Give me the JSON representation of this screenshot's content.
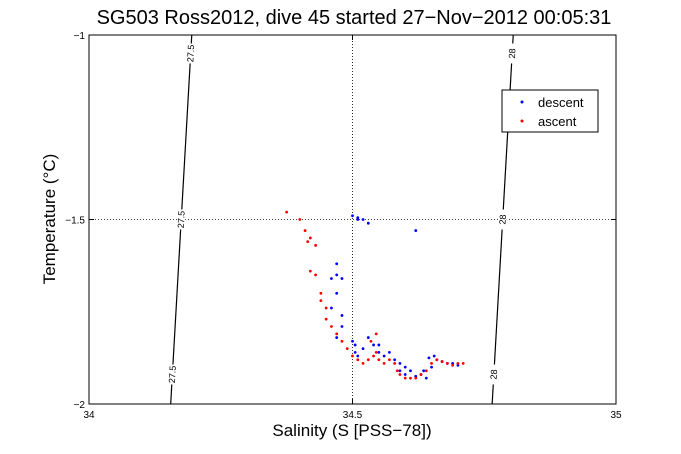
{
  "chart_data": {
    "type": "scatter",
    "title": "SG503 Ross2012, dive 45 started 27−Nov−2012 00:05:31",
    "xlabel": "Salinity (S [PSS−78])",
    "ylabel": "Temperature (°C)",
    "xlim": [
      34,
      35
    ],
    "ylim": [
      -2,
      -1
    ],
    "xticks": [
      34,
      34.5,
      35
    ],
    "xtick_labels": [
      "34",
      "34.5",
      "35"
    ],
    "yticks": [
      -2,
      -1.5,
      -1
    ],
    "ytick_labels": [
      "−2",
      "−1.5",
      "−1"
    ],
    "grid": "dotted",
    "legend_position": "top-right",
    "series": [
      {
        "name": "descent",
        "color": "#0000ff",
        "points": [
          [
            34.5,
            -1.49
          ],
          [
            34.51,
            -1.495
          ],
          [
            34.52,
            -1.5
          ],
          [
            34.53,
            -1.51
          ],
          [
            34.62,
            -1.53
          ],
          [
            34.51,
            -1.5
          ],
          [
            34.47,
            -1.62
          ],
          [
            34.47,
            -1.65
          ],
          [
            34.48,
            -1.66
          ],
          [
            34.46,
            -1.66
          ],
          [
            34.47,
            -1.7
          ],
          [
            34.46,
            -1.74
          ],
          [
            34.48,
            -1.76
          ],
          [
            34.48,
            -1.79
          ],
          [
            34.47,
            -1.82
          ],
          [
            34.5,
            -1.83
          ],
          [
            34.505,
            -1.84
          ],
          [
            34.505,
            -1.86
          ],
          [
            34.51,
            -1.87
          ],
          [
            34.52,
            -1.85
          ],
          [
            34.53,
            -1.82
          ],
          [
            34.54,
            -1.84
          ],
          [
            34.55,
            -1.86
          ],
          [
            34.55,
            -1.84
          ],
          [
            34.56,
            -1.87
          ],
          [
            34.57,
            -1.86
          ],
          [
            34.58,
            -1.88
          ],
          [
            34.59,
            -1.89
          ],
          [
            34.6,
            -1.9
          ],
          [
            34.61,
            -1.91
          ],
          [
            34.63,
            -1.92
          ],
          [
            34.64,
            -1.93
          ],
          [
            34.65,
            -1.9
          ],
          [
            34.66,
            -1.88
          ],
          [
            34.67,
            -1.885
          ],
          [
            34.68,
            -1.89
          ],
          [
            34.69,
            -1.89
          ],
          [
            34.7,
            -1.895
          ],
          [
            34.59,
            -1.91
          ],
          [
            34.6,
            -1.92
          ],
          [
            34.62,
            -1.925
          ],
          [
            34.635,
            -1.91
          ],
          [
            34.645,
            -1.875
          ],
          [
            34.655,
            -1.87
          ]
        ]
      },
      {
        "name": "ascent",
        "color": "#ff0000",
        "points": [
          [
            34.375,
            -1.48
          ],
          [
            34.4,
            -1.5
          ],
          [
            34.41,
            -1.53
          ],
          [
            34.42,
            -1.55
          ],
          [
            34.415,
            -1.56
          ],
          [
            34.43,
            -1.57
          ],
          [
            34.42,
            -1.64
          ],
          [
            34.43,
            -1.65
          ],
          [
            34.44,
            -1.7
          ],
          [
            34.44,
            -1.72
          ],
          [
            34.45,
            -1.74
          ],
          [
            34.45,
            -1.77
          ],
          [
            34.46,
            -1.79
          ],
          [
            34.47,
            -1.81
          ],
          [
            34.48,
            -1.83
          ],
          [
            34.49,
            -1.85
          ],
          [
            34.5,
            -1.87
          ],
          [
            34.51,
            -1.88
          ],
          [
            34.52,
            -1.89
          ],
          [
            34.53,
            -1.88
          ],
          [
            34.54,
            -1.87
          ],
          [
            34.545,
            -1.86
          ],
          [
            34.55,
            -1.88
          ],
          [
            34.56,
            -1.89
          ],
          [
            34.57,
            -1.88
          ],
          [
            34.58,
            -1.89
          ],
          [
            34.585,
            -1.91
          ],
          [
            34.59,
            -1.92
          ],
          [
            34.6,
            -1.93
          ],
          [
            34.61,
            -1.93
          ],
          [
            34.62,
            -1.93
          ],
          [
            34.63,
            -1.92
          ],
          [
            34.64,
            -1.91
          ],
          [
            34.65,
            -1.89
          ],
          [
            34.66,
            -1.88
          ],
          [
            34.67,
            -1.885
          ],
          [
            34.68,
            -1.89
          ],
          [
            34.69,
            -1.895
          ],
          [
            34.7,
            -1.89
          ],
          [
            34.71,
            -1.89
          ],
          [
            34.545,
            -1.81
          ],
          [
            34.535,
            -1.83
          ]
        ]
      }
    ],
    "density_contours": [
      {
        "label": "27.5",
        "x_at_ymin": 34.155,
        "x_at_ymax": 34.195
      },
      {
        "label": "28",
        "x_at_ymin": 34.765,
        "x_at_ymax": 34.805
      }
    ]
  }
}
